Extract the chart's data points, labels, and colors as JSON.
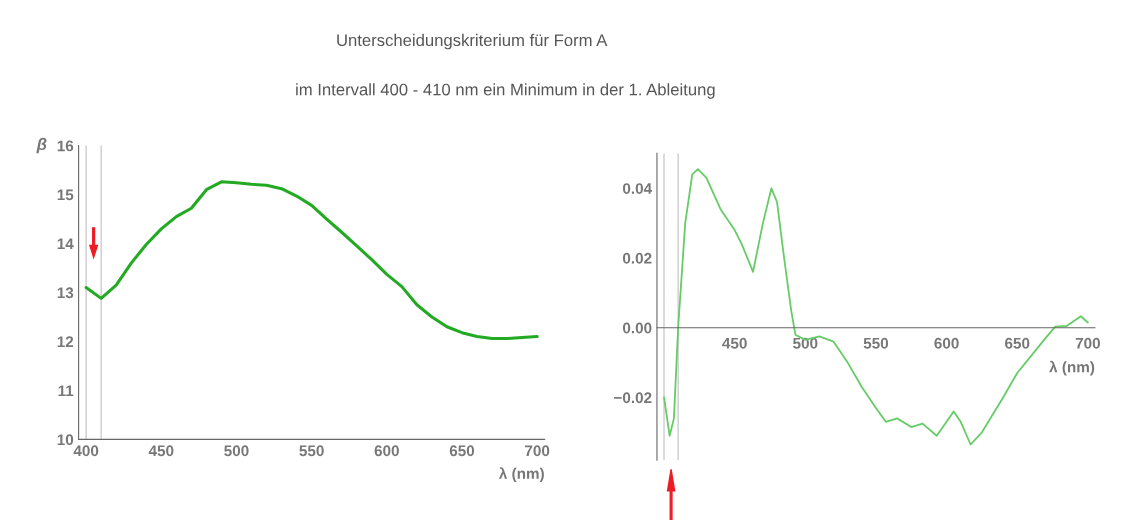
{
  "chart_data": [
    {
      "type": "line",
      "title": "Unterscheidungskriterium für Form A",
      "subtitle": "im Intervall 400 - 410 nm ein Minimum in der 1. Ableitung",
      "xlabel": "λ (nm)",
      "ylabel": "β",
      "x": [
        400,
        410,
        420,
        430,
        440,
        450,
        460,
        470,
        480,
        490,
        500,
        510,
        520,
        530,
        540,
        550,
        560,
        570,
        580,
        590,
        600,
        610,
        620,
        630,
        640,
        650,
        660,
        670,
        680,
        690,
        700
      ],
      "series": [
        {
          "color": "#22aa22",
          "values": [
            13.1,
            12.88,
            13.15,
            13.6,
            13.98,
            14.3,
            14.55,
            14.72,
            15.1,
            15.26,
            15.24,
            15.21,
            15.19,
            15.12,
            14.97,
            14.78,
            14.5,
            14.23,
            13.95,
            13.67,
            13.37,
            13.12,
            12.75,
            12.5,
            12.3,
            12.18,
            12.1,
            12.06,
            12.06,
            12.08,
            12.1
          ]
        }
      ],
      "xlim": [
        395,
        705
      ],
      "ylim": [
        10,
        16
      ],
      "xticks": [
        400,
        450,
        500,
        550,
        600,
        650,
        700
      ],
      "yticks": [
        10,
        11,
        12,
        13,
        14,
        15,
        16
      ],
      "ref_lines": [
        {
          "axis": "x",
          "value": 400,
          "color": "#cccccc"
        },
        {
          "axis": "x",
          "value": 410,
          "color": "#cccccc"
        }
      ],
      "grid": false
    },
    {
      "type": "line",
      "xlabel": "λ (nm)",
      "x": [
        400,
        404,
        407,
        410,
        415,
        420,
        424,
        430,
        440,
        450,
        455,
        463,
        470,
        476,
        480,
        485,
        490,
        493,
        500,
        510,
        520,
        530,
        540,
        550,
        557,
        565,
        575,
        583,
        593,
        600,
        605,
        610,
        617,
        625,
        640,
        650,
        660,
        670,
        677,
        685,
        695,
        700
      ],
      "series": [
        {
          "color": "#66cc66",
          "values": [
            -0.02,
            -0.031,
            -0.026,
            0.0,
            0.03,
            0.044,
            0.0455,
            0.043,
            0.034,
            0.028,
            0.024,
            0.016,
            0.03,
            0.04,
            0.036,
            0.02,
            0.005,
            -0.002,
            -0.0035,
            -0.0025,
            -0.004,
            -0.01,
            -0.017,
            -0.023,
            -0.027,
            -0.026,
            -0.0285,
            -0.0275,
            -0.031,
            -0.027,
            -0.024,
            -0.027,
            -0.0335,
            -0.03,
            -0.02,
            -0.013,
            -0.008,
            -0.003,
            0.0003,
            0.0005,
            0.0033,
            0.0015
          ]
        }
      ],
      "xlim": [
        395,
        705
      ],
      "ylim": [
        -0.038,
        0.05
      ],
      "xticks": [
        450,
        500,
        550,
        600,
        650,
        700
      ],
      "yticks": [
        {
          "value": -0.02,
          "label": "−0.02"
        },
        {
          "value": 0.0,
          "label": "0.00"
        },
        {
          "value": 0.02,
          "label": "0.02"
        },
        {
          "value": 0.04,
          "label": "0.04"
        }
      ],
      "ref_lines": [
        {
          "axis": "x",
          "value": 400,
          "color": "#cccccc"
        },
        {
          "axis": "x",
          "value": 410,
          "color": "#cccccc"
        }
      ],
      "grid": false
    }
  ]
}
